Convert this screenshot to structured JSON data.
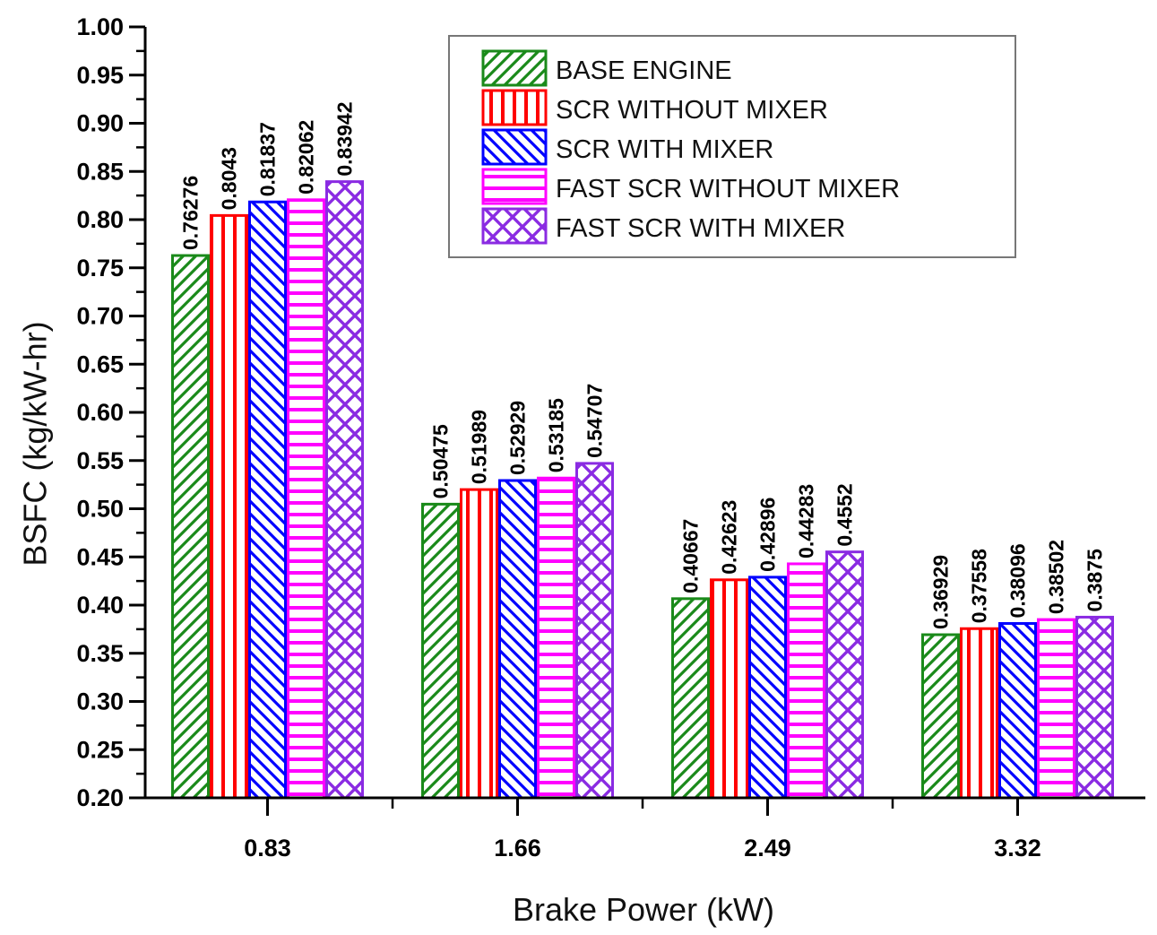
{
  "chart_data": {
    "type": "bar",
    "title": "",
    "xlabel": "Brake Power (kW)",
    "ylabel": "BSFC (kg/kW-hr)",
    "categories": [
      "0.83",
      "1.66",
      "2.49",
      "3.32"
    ],
    "ylim": [
      0.2,
      1.0
    ],
    "yticks": [
      "0.20",
      "0.25",
      "0.30",
      "0.35",
      "0.40",
      "0.45",
      "0.50",
      "0.55",
      "0.60",
      "0.65",
      "0.70",
      "0.75",
      "0.80",
      "0.85",
      "0.90",
      "0.95",
      "1.00"
    ],
    "grid": false,
    "legend_position": "top-right",
    "series": [
      {
        "name": "BASE ENGINE",
        "color": "#1a8a1a",
        "pattern": "diagonal-up",
        "values": [
          0.76276,
          0.50475,
          0.40667,
          0.36929
        ],
        "labels": [
          "0.76276",
          "0.50475",
          "0.40667",
          "0.36929"
        ]
      },
      {
        "name": "SCR WITHOUT MIXER",
        "color": "#ff0000",
        "pattern": "vertical",
        "values": [
          0.8043,
          0.51989,
          0.42623,
          0.37558
        ],
        "labels": [
          "0.8043",
          "0.51989",
          "0.42623",
          "0.37558"
        ]
      },
      {
        "name": "SCR WITH MIXER",
        "color": "#0000ff",
        "pattern": "diagonal-down",
        "values": [
          0.81837,
          0.52929,
          0.42896,
          0.38096
        ],
        "labels": [
          "0.81837",
          "0.52929",
          "0.42896",
          "0.38096"
        ]
      },
      {
        "name": "FAST SCR WITHOUT MIXER",
        "color": "#ff00ff",
        "pattern": "horizontal",
        "values": [
          0.82062,
          0.53185,
          0.44283,
          0.38502
        ],
        "labels": [
          "0.82062",
          "0.53185",
          "0.44283",
          "0.38502"
        ]
      },
      {
        "name": "FAST SCR WITH MIXER",
        "color": "#8a2be2",
        "pattern": "crosshatch",
        "values": [
          0.83942,
          0.54707,
          0.4552,
          0.3875
        ],
        "labels": [
          "0.83942",
          "0.54707",
          "0.4552",
          "0.3875"
        ]
      }
    ]
  }
}
